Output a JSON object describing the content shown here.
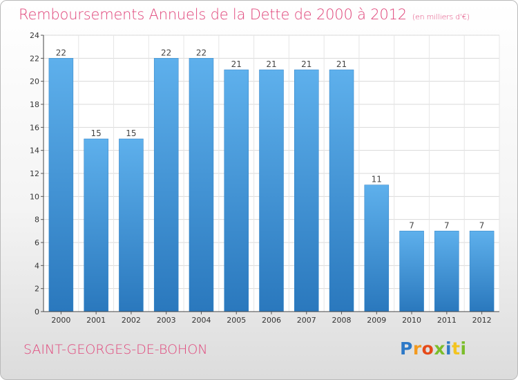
{
  "chart_data": {
    "type": "bar",
    "title": "Remboursements Annuels de la Dette de 2000 à 2012",
    "unit_note": "(en milliers d'€)",
    "categories": [
      "2000",
      "2001",
      "2002",
      "2003",
      "2004",
      "2005",
      "2006",
      "2007",
      "2008",
      "2009",
      "2010",
      "2011",
      "2012"
    ],
    "values": [
      22,
      15,
      15,
      22,
      22,
      21,
      21,
      21,
      21,
      11,
      7,
      7,
      7
    ],
    "ylim": [
      0,
      24
    ],
    "yticks": [
      0,
      2,
      4,
      6,
      8,
      10,
      12,
      14,
      16,
      18,
      20,
      22,
      24
    ],
    "grid": true,
    "bar_color": "#3a8fd4",
    "xlabel": "",
    "ylabel": ""
  },
  "footer": {
    "town": "SAINT-GEORGES-DE-BOHON",
    "logo_letters": [
      "P",
      "r",
      "o",
      "x",
      "i",
      "t",
      "i"
    ],
    "logo_colors": [
      "#2d79c7",
      "#f39a1f",
      "#e64a19",
      "#7bbd2b",
      "#2d79c7",
      "#f3c41f",
      "#7bbd2b"
    ]
  },
  "colors": {
    "accent": "#e0457a"
  }
}
